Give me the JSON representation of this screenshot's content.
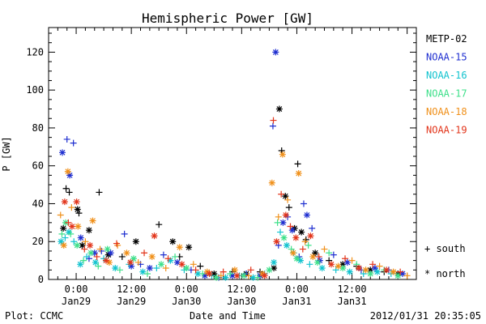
{
  "chart_data": {
    "type": "scatter",
    "title": "Hemispheric Power [GW]",
    "xlabel": "Date and Time",
    "ylabel": "P [GW]",
    "ylim": [
      0,
      133
    ],
    "xlim_hours": [
      -6,
      74
    ],
    "yticks": [
      0,
      20,
      40,
      60,
      80,
      100,
      120
    ],
    "xticks": [
      {
        "hour": 0,
        "time": "0:00",
        "date": "Jan29"
      },
      {
        "hour": 12,
        "time": "12:00",
        "date": "Jan29"
      },
      {
        "hour": 24,
        "time": "0:00",
        "date": "Jan30"
      },
      {
        "hour": 36,
        "time": "12:00",
        "date": "Jan30"
      },
      {
        "hour": 48,
        "time": "0:00",
        "date": "Jan31"
      },
      {
        "hour": 60,
        "time": "12:00",
        "date": "Jan31"
      }
    ],
    "marker_legend": [
      {
        "symbol": "+",
        "label": "south"
      },
      {
        "symbol": "*",
        "label": "north"
      }
    ],
    "series": [
      {
        "name": "METP-02",
        "color": "#000000",
        "points": [
          [
            -2.8,
            27,
            "n"
          ],
          [
            -2.2,
            48,
            "s"
          ],
          [
            -1.5,
            46,
            "s"
          ],
          [
            0.3,
            37,
            "n"
          ],
          [
            0.6,
            35,
            "s"
          ],
          [
            1.3,
            18,
            "n"
          ],
          [
            2.8,
            26,
            "n"
          ],
          [
            5.0,
            46,
            "s"
          ],
          [
            7.0,
            13,
            "n"
          ],
          [
            10.0,
            12,
            "s"
          ],
          [
            13.0,
            20,
            "n"
          ],
          [
            18.0,
            29,
            "s"
          ],
          [
            21.0,
            20,
            "n"
          ],
          [
            22.5,
            12,
            "s"
          ],
          [
            24.5,
            17,
            "n"
          ],
          [
            27.0,
            7,
            "s"
          ],
          [
            30.0,
            3,
            "n"
          ],
          [
            34.0,
            4,
            "s"
          ],
          [
            37.0,
            3,
            "n"
          ],
          [
            40.0,
            4,
            "s"
          ],
          [
            43.0,
            6,
            "n"
          ],
          [
            44.2,
            90,
            "n"
          ],
          [
            44.7,
            68,
            "s"
          ],
          [
            45.5,
            44,
            "n"
          ],
          [
            46.3,
            38,
            "s"
          ],
          [
            47.5,
            27,
            "n"
          ],
          [
            48.2,
            61,
            "s"
          ],
          [
            49.0,
            25,
            "n"
          ],
          [
            50.0,
            21,
            "s"
          ],
          [
            52.0,
            14,
            "n"
          ],
          [
            55.0,
            10,
            "s"
          ],
          [
            58.0,
            8,
            "n"
          ],
          [
            61.0,
            7,
            "s"
          ],
          [
            64.0,
            5,
            "n"
          ],
          [
            67.0,
            4,
            "s"
          ],
          [
            70.0,
            3,
            "n"
          ]
        ]
      },
      {
        "name": "NOAA-15",
        "color": "#1f2fd0",
        "points": [
          [
            -3.0,
            67,
            "n"
          ],
          [
            -2.0,
            74,
            "s"
          ],
          [
            -1.4,
            55,
            "n"
          ],
          [
            -0.6,
            72,
            "s"
          ],
          [
            1.0,
            22,
            "n"
          ],
          [
            2.8,
            11,
            "s"
          ],
          [
            4.0,
            14,
            "n"
          ],
          [
            5.5,
            15,
            "s"
          ],
          [
            7.5,
            14,
            "n"
          ],
          [
            10.5,
            24,
            "s"
          ],
          [
            12.0,
            7,
            "n"
          ],
          [
            14.0,
            8,
            "s"
          ],
          [
            16.0,
            6,
            "n"
          ],
          [
            19.0,
            13,
            "s"
          ],
          [
            22.0,
            9,
            "n"
          ],
          [
            25.0,
            5,
            "s"
          ],
          [
            28.0,
            2,
            "n"
          ],
          [
            31.0,
            1,
            "s"
          ],
          [
            34.0,
            2,
            "n"
          ],
          [
            37.0,
            3,
            "s"
          ],
          [
            40.0,
            2,
            "n"
          ],
          [
            42.8,
            81,
            "s"
          ],
          [
            43.4,
            120,
            "n"
          ],
          [
            44.0,
            18,
            "s"
          ],
          [
            45.0,
            30,
            "n"
          ],
          [
            46.0,
            33,
            "s"
          ],
          [
            47.0,
            26,
            "n"
          ],
          [
            48.5,
            12,
            "s"
          ],
          [
            49.5,
            40,
            "s"
          ],
          [
            50.2,
            34,
            "n"
          ],
          [
            51.3,
            27,
            "s"
          ],
          [
            53.0,
            10,
            "n"
          ],
          [
            56.0,
            13,
            "s"
          ],
          [
            59.0,
            9,
            "n"
          ],
          [
            62.0,
            5,
            "s"
          ],
          [
            65.0,
            6,
            "n"
          ],
          [
            68.0,
            5,
            "s"
          ],
          [
            71.0,
            3,
            "n"
          ]
        ]
      },
      {
        "name": "NOAA-16",
        "color": "#11c3cf",
        "points": [
          [
            -3.3,
            20,
            "n"
          ],
          [
            -2.4,
            22,
            "s"
          ],
          [
            -1.6,
            25,
            "n"
          ],
          [
            -0.5,
            20,
            "s"
          ],
          [
            0.9,
            8,
            "n"
          ],
          [
            2.3,
            12,
            "s"
          ],
          [
            4.2,
            9,
            "n"
          ],
          [
            6.0,
            11,
            "s"
          ],
          [
            8.5,
            6,
            "n"
          ],
          [
            11.5,
            8,
            "s"
          ],
          [
            14.5,
            4,
            "n"
          ],
          [
            17.5,
            6,
            "s"
          ],
          [
            20.5,
            10,
            "n"
          ],
          [
            23.5,
            5,
            "s"
          ],
          [
            26.5,
            3,
            "n"
          ],
          [
            29.5,
            2,
            "s"
          ],
          [
            32.5,
            1,
            "n"
          ],
          [
            35.5,
            2,
            "s"
          ],
          [
            38.5,
            1,
            "n"
          ],
          [
            41.0,
            3,
            "s"
          ],
          [
            43.0,
            9,
            "n"
          ],
          [
            44.4,
            25,
            "s"
          ],
          [
            45.8,
            18,
            "n"
          ],
          [
            47.3,
            14,
            "s"
          ],
          [
            48.8,
            10,
            "n"
          ],
          [
            50.8,
            8,
            "s"
          ],
          [
            53.5,
            6,
            "n"
          ],
          [
            56.5,
            5,
            "s"
          ],
          [
            59.5,
            4,
            "n"
          ],
          [
            62.5,
            3,
            "s"
          ],
          [
            65.5,
            4,
            "n"
          ],
          [
            68.5,
            3,
            "s"
          ]
        ]
      },
      {
        "name": "NOAA-17",
        "color": "#3ee08a",
        "points": [
          [
            -3.1,
            24,
            "s"
          ],
          [
            -2.3,
            30,
            "n"
          ],
          [
            -1.2,
            24,
            "s"
          ],
          [
            0.2,
            18,
            "n"
          ],
          [
            1.6,
            10,
            "s"
          ],
          [
            3.2,
            14,
            "n"
          ],
          [
            4.8,
            7,
            "s"
          ],
          [
            6.8,
            16,
            "n"
          ],
          [
            9.5,
            5,
            "s"
          ],
          [
            12.5,
            11,
            "n"
          ],
          [
            15.5,
            3,
            "s"
          ],
          [
            18.5,
            8,
            "n"
          ],
          [
            21.5,
            12,
            "s"
          ],
          [
            24.0,
            6,
            "n"
          ],
          [
            27.5,
            3,
            "s"
          ],
          [
            30.5,
            1,
            "n"
          ],
          [
            33.5,
            3,
            "s"
          ],
          [
            36.5,
            2,
            "n"
          ],
          [
            39.5,
            1,
            "s"
          ],
          [
            42.0,
            5,
            "n"
          ],
          [
            43.8,
            30,
            "s"
          ],
          [
            45.2,
            22,
            "n"
          ],
          [
            46.8,
            16,
            "s"
          ],
          [
            48.0,
            11,
            "n"
          ],
          [
            50.5,
            18,
            "s"
          ],
          [
            52.5,
            9,
            "n"
          ],
          [
            55.0,
            14,
            "s"
          ],
          [
            58.0,
            6,
            "n"
          ],
          [
            61.0,
            8,
            "s"
          ],
          [
            64.0,
            3,
            "n"
          ],
          [
            67.0,
            5,
            "s"
          ],
          [
            70.0,
            2,
            "n"
          ]
        ]
      },
      {
        "name": "NOAA-18",
        "color": "#f0901a",
        "points": [
          [
            -3.4,
            34,
            "s"
          ],
          [
            -2.7,
            18,
            "n"
          ],
          [
            -1.8,
            57,
            "n"
          ],
          [
            -1.0,
            38,
            "s"
          ],
          [
            0.4,
            28,
            "n"
          ],
          [
            2.0,
            20,
            "s"
          ],
          [
            3.6,
            31,
            "n"
          ],
          [
            5.2,
            16,
            "s"
          ],
          [
            7.2,
            9,
            "n"
          ],
          [
            9.0,
            18,
            "s"
          ],
          [
            11.0,
            14,
            "n"
          ],
          [
            13.5,
            9,
            "s"
          ],
          [
            16.5,
            12,
            "n"
          ],
          [
            19.5,
            6,
            "s"
          ],
          [
            22.5,
            17,
            "n"
          ],
          [
            25.5,
            8,
            "s"
          ],
          [
            28.5,
            4,
            "n"
          ],
          [
            31.5,
            2,
            "s"
          ],
          [
            34.5,
            5,
            "n"
          ],
          [
            37.5,
            2,
            "s"
          ],
          [
            40.5,
            3,
            "n"
          ],
          [
            42.6,
            51,
            "n"
          ],
          [
            44.0,
            33,
            "s"
          ],
          [
            44.9,
            66,
            "n"
          ],
          [
            46.0,
            42,
            "s"
          ],
          [
            47.2,
            14,
            "n"
          ],
          [
            48.4,
            56,
            "n"
          ],
          [
            49.8,
            20,
            "s"
          ],
          [
            51.5,
            12,
            "n"
          ],
          [
            54.0,
            16,
            "s"
          ],
          [
            57.0,
            7,
            "n"
          ],
          [
            60.0,
            10,
            "s"
          ],
          [
            63.0,
            5,
            "n"
          ],
          [
            66.0,
            7,
            "s"
          ],
          [
            69.0,
            4,
            "n"
          ],
          [
            72.0,
            2,
            "s"
          ]
        ]
      },
      {
        "name": "NOAA-19",
        "color": "#e2341a",
        "points": [
          [
            -2.5,
            41,
            "n"
          ],
          [
            -1.7,
            30,
            "s"
          ],
          [
            -0.9,
            28,
            "n"
          ],
          [
            0.1,
            41,
            "n"
          ],
          [
            1.8,
            16,
            "s"
          ],
          [
            3.0,
            18,
            "n"
          ],
          [
            4.5,
            12,
            "s"
          ],
          [
            6.5,
            10,
            "n"
          ],
          [
            8.8,
            19,
            "s"
          ],
          [
            11.8,
            9,
            "n"
          ],
          [
            14.8,
            14,
            "s"
          ],
          [
            17.0,
            23,
            "n"
          ],
          [
            20.0,
            11,
            "s"
          ],
          [
            23.0,
            8,
            "n"
          ],
          [
            26.0,
            5,
            "s"
          ],
          [
            29.0,
            3,
            "n"
          ],
          [
            32.0,
            4,
            "s"
          ],
          [
            35.0,
            2,
            "n"
          ],
          [
            38.0,
            5,
            "s"
          ],
          [
            41.0,
            2,
            "n"
          ],
          [
            42.9,
            84,
            "s"
          ],
          [
            43.6,
            20,
            "n"
          ],
          [
            44.6,
            45,
            "s"
          ],
          [
            45.6,
            34,
            "n"
          ],
          [
            46.6,
            28,
            "s"
          ],
          [
            47.8,
            22,
            "n"
          ],
          [
            49.3,
            16,
            "s"
          ],
          [
            51.0,
            23,
            "n"
          ],
          [
            52.8,
            12,
            "s"
          ],
          [
            55.5,
            8,
            "n"
          ],
          [
            58.5,
            11,
            "s"
          ],
          [
            61.5,
            6,
            "n"
          ],
          [
            64.5,
            8,
            "s"
          ],
          [
            67.5,
            5,
            "n"
          ],
          [
            70.5,
            4,
            "s"
          ]
        ]
      }
    ]
  },
  "footer": {
    "source": "Plot: CCMC",
    "timestamp": "2012/01/31 20:35:05"
  }
}
